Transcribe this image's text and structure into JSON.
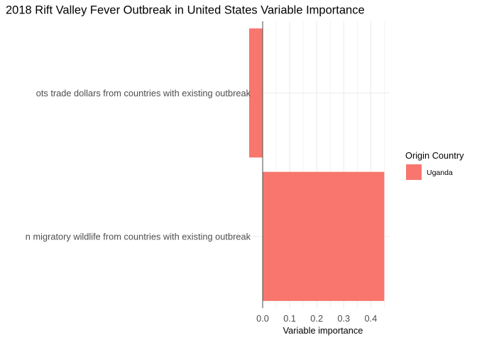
{
  "chart_data": {
    "type": "bar",
    "orientation": "horizontal",
    "title": "2018 Rift Valley Fever Outbreak in United States Variable Importance",
    "categories": [
      "ots trade dollars from countries with existing outbreak",
      "n migratory wildlife from countries with existing outbreak"
    ],
    "series": [
      {
        "name": "Uganda",
        "values": [
          -0.05,
          0.45
        ],
        "color": "#f8766d"
      }
    ],
    "xlabel": "Variable importance",
    "ylabel": "",
    "xlim": [
      -0.05,
      0.47
    ],
    "xticks": [
      "0.0",
      "0.1",
      "0.2",
      "0.3",
      "0.4"
    ],
    "xtick_values": [
      0.0,
      0.1,
      0.2,
      0.3,
      0.4
    ],
    "grid": true,
    "legend": {
      "title": "Origin Country",
      "position": "right"
    }
  }
}
